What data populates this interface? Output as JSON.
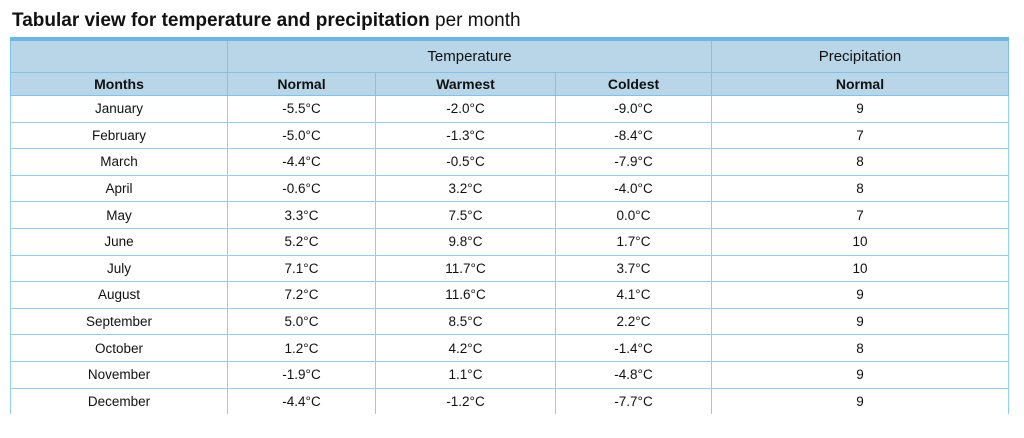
{
  "title": {
    "bold": "Tabular view for temperature and precipitation",
    "normal": " per month"
  },
  "table": {
    "groups": {
      "temperature": "Temperature",
      "precipitation": "Precipitation"
    },
    "columns": [
      "Months",
      "Normal",
      "Warmest",
      "Coldest",
      "Normal"
    ],
    "rows": [
      [
        "January",
        "-5.5°C",
        "-2.0°C",
        "-9.0°C",
        "9"
      ],
      [
        "February",
        "-5.0°C",
        "-1.3°C",
        "-8.4°C",
        "7"
      ],
      [
        "March",
        "-4.4°C",
        "-0.5°C",
        "-7.9°C",
        "8"
      ],
      [
        "April",
        "-0.6°C",
        "3.2°C",
        "-4.0°C",
        "8"
      ],
      [
        "May",
        "3.3°C",
        "7.5°C",
        "0.0°C",
        "7"
      ],
      [
        "June",
        "5.2°C",
        "9.8°C",
        "1.7°C",
        "10"
      ],
      [
        "July",
        "7.1°C",
        "11.7°C",
        "3.7°C",
        "10"
      ],
      [
        "August",
        "7.2°C",
        "11.6°C",
        "4.1°C",
        "9"
      ],
      [
        "September",
        "5.0°C",
        "8.5°C",
        "2.2°C",
        "9"
      ],
      [
        "October",
        "1.2°C",
        "4.2°C",
        "-1.4°C",
        "8"
      ],
      [
        "November",
        "-1.9°C",
        "1.1°C",
        "-4.8°C",
        "9"
      ],
      [
        "December",
        "-4.4°C",
        "-1.2°C",
        "-7.7°C",
        "9"
      ]
    ]
  },
  "colors": {
    "header_bg": "#b8d6e7",
    "header_top_accent": "#6ab8e6",
    "grid_line": "#8fd0f2"
  }
}
